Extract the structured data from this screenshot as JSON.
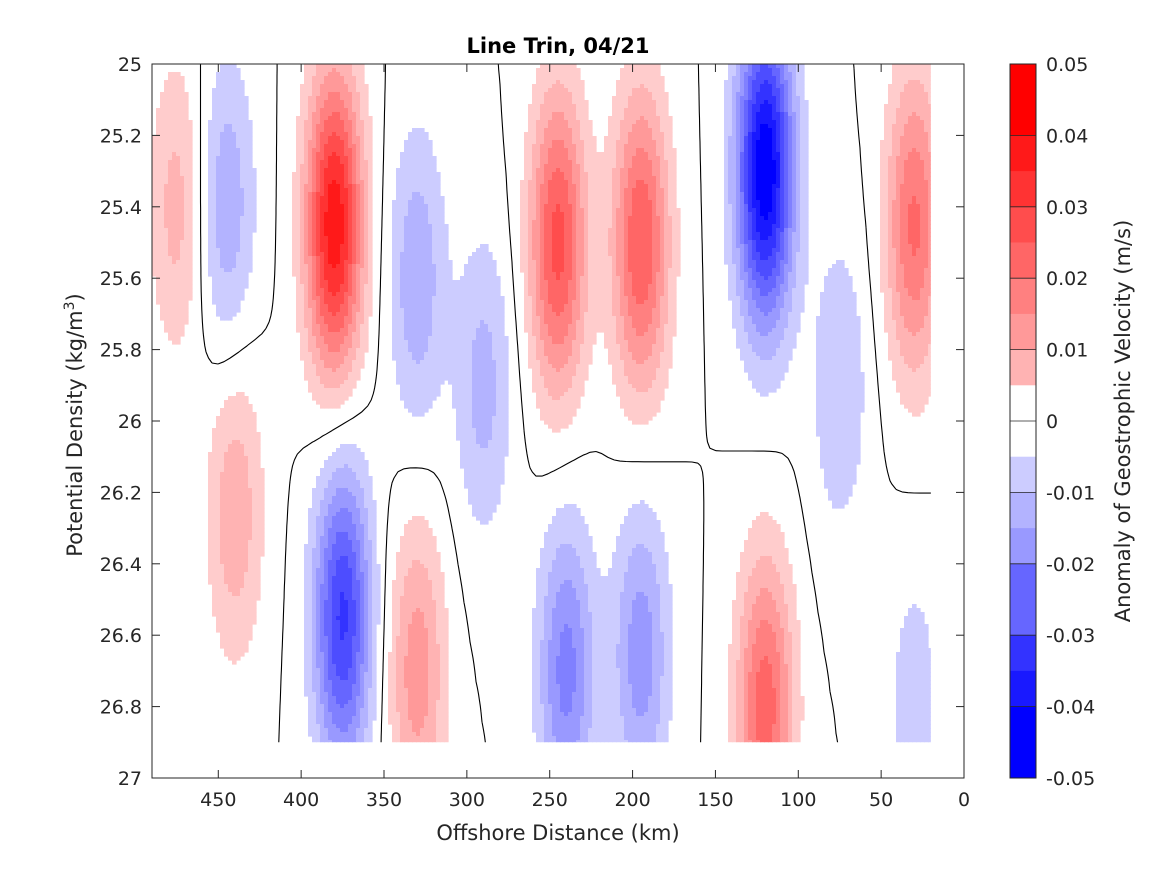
{
  "chart_data": {
    "type": "heatmap",
    "title": "Line Trin, 04/21",
    "xlabel": "Offshore Distance (km)",
    "ylabel": "Potential Density (kg/m3)",
    "ylabel_main": "Potential Density (kg/m",
    "ylabel_sup": "3",
    "ylabel_close": ")",
    "colorbar_label": "Anomaly of Geostrophic Velocity (m/s)",
    "xlim": [
      490,
      0
    ],
    "x_reversed": true,
    "ylim": [
      25,
      27
    ],
    "y_reversed": true,
    "x_ticks": [
      450,
      400,
      350,
      300,
      250,
      200,
      150,
      100,
      50,
      0
    ],
    "y_ticks": [
      "25",
      "25.2",
      "25.4",
      "25.6",
      "25.8",
      "26",
      "26.2",
      "26.4",
      "26.6",
      "26.8",
      "27"
    ],
    "colorbar_range": [
      -0.05,
      0.05
    ],
    "colorbar_ticks": [
      "0.05",
      "0.04",
      "0.03",
      "0.02",
      "0.01",
      "0",
      "-0.01",
      "-0.02",
      "-0.03",
      "-0.04",
      "-0.05"
    ],
    "color_positive": "#ff0000",
    "color_negative": "#0000ff",
    "color_zero": "#ffffff",
    "zero_contour_color": "#000000",
    "data_extent": {
      "x": [
        490,
        20
      ],
      "y": [
        25,
        26.9
      ]
    },
    "features": [
      {
        "x": 475,
        "y": 25.4,
        "value": 0.012
      },
      {
        "x": 445,
        "y": 25.4,
        "value": -0.014
      },
      {
        "x": 440,
        "y": 26.25,
        "value": 0.014
      },
      {
        "x": 380,
        "y": 25.45,
        "value": 0.044
      },
      {
        "x": 375,
        "y": 26.55,
        "value": -0.036
      },
      {
        "x": 330,
        "y": 25.6,
        "value": -0.014
      },
      {
        "x": 330,
        "y": 26.7,
        "value": 0.018
      },
      {
        "x": 290,
        "y": 25.9,
        "value": -0.012
      },
      {
        "x": 245,
        "y": 25.5,
        "value": 0.032
      },
      {
        "x": 240,
        "y": 26.7,
        "value": -0.022
      },
      {
        "x": 195,
        "y": 25.5,
        "value": 0.03
      },
      {
        "x": 195,
        "y": 26.65,
        "value": -0.018
      },
      {
        "x": 120,
        "y": 25.3,
        "value": -0.05
      },
      {
        "x": 120,
        "y": 26.8,
        "value": 0.028
      },
      {
        "x": 75,
        "y": 25.9,
        "value": -0.01
      },
      {
        "x": 30,
        "y": 25.45,
        "value": 0.026
      },
      {
        "x": 30,
        "y": 26.8,
        "value": -0.008
      }
    ]
  }
}
